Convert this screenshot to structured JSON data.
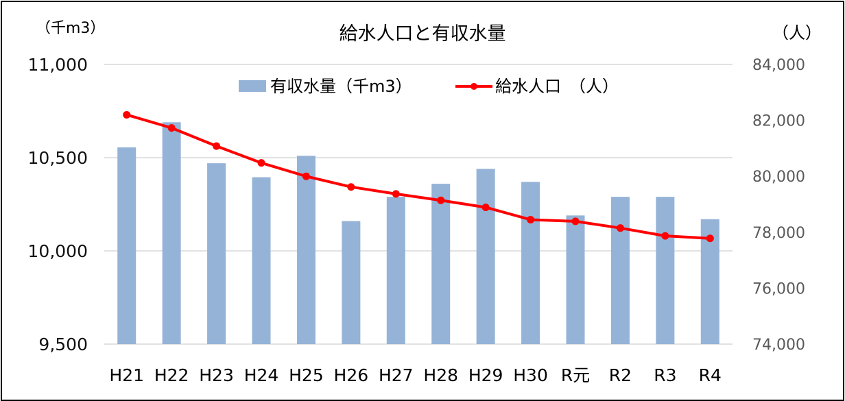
{
  "chart_data": {
    "type": "bar",
    "title": "給水人口と有収水量",
    "left_unit": "（千m3）",
    "right_unit": "（人）",
    "categories": [
      "H21",
      "H22",
      "H23",
      "H24",
      "H25",
      "H26",
      "H27",
      "H28",
      "H29",
      "H30",
      "R元",
      "R2",
      "R3",
      "R4"
    ],
    "series": [
      {
        "name": "有収水量（千m3）",
        "type": "bar",
        "axis": "left",
        "color": "#95b3d7",
        "values": [
          10555,
          10690,
          10470,
          10395,
          10510,
          10160,
          10290,
          10360,
          10440,
          10370,
          10190,
          10290,
          10290,
          10170
        ]
      },
      {
        "name": "給水人口　（人）",
        "type": "line",
        "axis": "right",
        "color": "#ff0000",
        "values": [
          82200,
          81730,
          81080,
          80480,
          80000,
          79620,
          79370,
          79140,
          78890,
          78450,
          78390,
          78150,
          77870,
          77780
        ]
      }
    ],
    "ylim_left": [
      9500,
      11000
    ],
    "yticks_left": [
      "9,500",
      "10,000",
      "10,500",
      "11,000"
    ],
    "ylim_right": [
      74000,
      84000
    ],
    "yticks_right": [
      "74,000",
      "76,000",
      "78,000",
      "80,000",
      "82,000",
      "84,000"
    ],
    "grid": true,
    "legend_position": "top"
  }
}
